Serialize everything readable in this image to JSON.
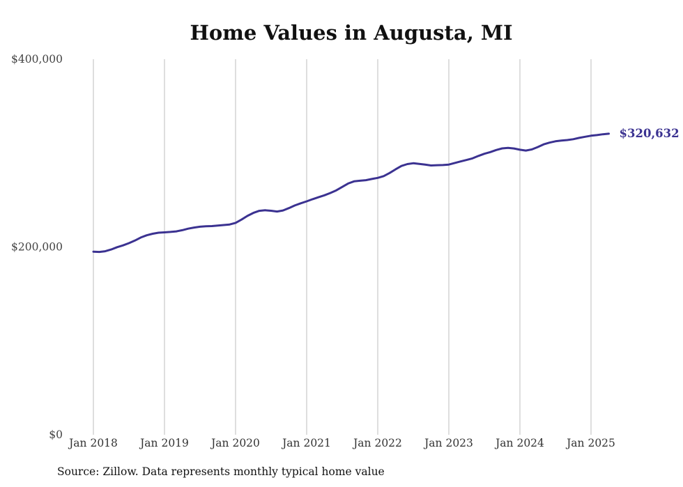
{
  "chart_data": {
    "type": "line",
    "title": "Home Values in Augusta, MI",
    "xlabel": "",
    "ylabel": "",
    "ylim": [
      0,
      400000
    ],
    "yticks": [
      0,
      200000,
      400000
    ],
    "ytick_labels": [
      "$0",
      "$200,000",
      "$400,000"
    ],
    "xlim": [
      "2018-01",
      "2025-04"
    ],
    "xtick_labels": [
      "Jan 2018",
      "Jan 2019",
      "Jan 2020",
      "Jan 2021",
      "Jan 2022",
      "Jan 2023",
      "Jan 2024",
      "Jan 2025"
    ],
    "grid": "vertical",
    "legend": "none",
    "end_label": "$320,632",
    "series": [
      {
        "color": "#3b3291",
        "x": [
          "2018-01",
          "2018-02",
          "2018-03",
          "2018-04",
          "2018-05",
          "2018-06",
          "2018-07",
          "2018-08",
          "2018-09",
          "2018-10",
          "2018-11",
          "2018-12",
          "2019-01",
          "2019-02",
          "2019-03",
          "2019-04",
          "2019-05",
          "2019-06",
          "2019-07",
          "2019-08",
          "2019-09",
          "2019-10",
          "2019-11",
          "2019-12",
          "2020-01",
          "2020-02",
          "2020-03",
          "2020-04",
          "2020-05",
          "2020-06",
          "2020-07",
          "2020-08",
          "2020-09",
          "2020-10",
          "2020-11",
          "2020-12",
          "2021-01",
          "2021-02",
          "2021-03",
          "2021-04",
          "2021-05",
          "2021-06",
          "2021-07",
          "2021-08",
          "2021-09",
          "2021-10",
          "2021-11",
          "2021-12",
          "2022-01",
          "2022-02",
          "2022-03",
          "2022-04",
          "2022-05",
          "2022-06",
          "2022-07",
          "2022-08",
          "2022-09",
          "2022-10",
          "2022-11",
          "2022-12",
          "2023-01",
          "2023-02",
          "2023-03",
          "2023-04",
          "2023-05",
          "2023-06",
          "2023-07",
          "2023-08",
          "2023-09",
          "2023-10",
          "2023-11",
          "2023-12",
          "2024-01",
          "2024-02",
          "2024-03",
          "2024-04",
          "2024-05",
          "2024-06",
          "2024-07",
          "2024-08",
          "2024-09",
          "2024-10",
          "2024-11",
          "2024-12",
          "2025-01",
          "2025-02",
          "2025-03",
          "2025-04"
        ],
        "values": [
          195000,
          194700,
          195500,
          197300,
          199800,
          201700,
          204100,
          206800,
          210100,
          212500,
          214100,
          215200,
          215600,
          216000,
          216600,
          217900,
          219500,
          220700,
          221600,
          222100,
          222300,
          222800,
          223400,
          224000,
          225700,
          229200,
          233100,
          236300,
          238500,
          239100,
          238600,
          237800,
          238900,
          241400,
          244200,
          246500,
          248600,
          250900,
          253000,
          255100,
          257500,
          260300,
          264000,
          267600,
          269900,
          270600,
          271200,
          272400,
          273600,
          275500,
          278800,
          282700,
          286300,
          288300,
          289200,
          288500,
          287700,
          286800,
          287100,
          287300,
          287800,
          289500,
          291100,
          292700,
          294400,
          297000,
          299300,
          301100,
          303300,
          305000,
          305600,
          304900,
          303600,
          302700,
          303900,
          306400,
          309300,
          311200,
          312600,
          313300,
          313900,
          314800,
          316200,
          317400,
          318500,
          319200,
          320100,
          320632
        ]
      }
    ]
  },
  "source_note": "Source: Zillow. Data represents monthly typical home value"
}
